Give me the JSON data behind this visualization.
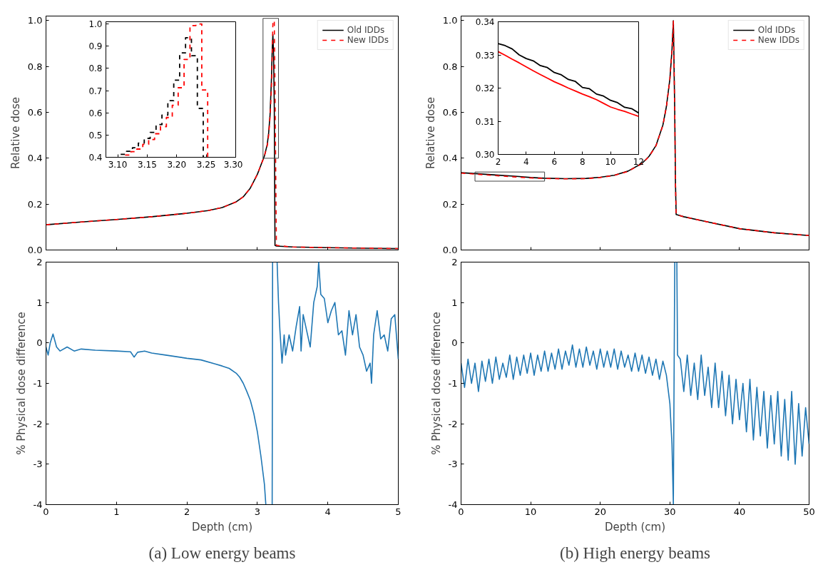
{
  "chart_data": [
    {
      "type": "line",
      "ylabel": "Relative dose",
      "xlim": [
        0,
        5
      ],
      "ylim": [
        0,
        1.02
      ],
      "xticks": [
        0,
        1,
        2,
        3,
        4,
        5
      ],
      "yticks": [
        {
          "value": 0,
          "label": "0.0"
        },
        0.2,
        0.4,
        0.6,
        0.8,
        {
          "value": 1,
          "label": "1.0"
        }
      ],
      "tick_labels": "y",
      "legend": "top right",
      "x": [
        0,
        0.5,
        1,
        1.5,
        2,
        2.3,
        2.5,
        2.7,
        2.8,
        2.9,
        3.0,
        3.05,
        3.1,
        3.14,
        3.16,
        3.18,
        3.2,
        3.21,
        3.22,
        3.23,
        3.24,
        3.25,
        3.27,
        3.5,
        4,
        4.5,
        5
      ],
      "series": [
        {
          "name": "Old IDDs",
          "color": "#000000",
          "line_style": "solid",
          "values": [
            0.11,
            0.122,
            0.133,
            0.145,
            0.16,
            0.172,
            0.185,
            0.21,
            0.232,
            0.27,
            0.33,
            0.37,
            0.41,
            0.46,
            0.51,
            0.59,
            0.75,
            0.87,
            0.94,
            0.85,
            0.62,
            0.02,
            0.017,
            0.013,
            0.01,
            0.008,
            0.006
          ]
        },
        {
          "name": "New IDDs",
          "color": "#ff0000",
          "line_style": "dashed",
          "values": [
            0.11,
            0.122,
            0.133,
            0.145,
            0.16,
            0.172,
            0.185,
            0.21,
            0.232,
            0.27,
            0.33,
            0.37,
            0.41,
            0.455,
            0.5,
            0.58,
            0.71,
            0.84,
            0.99,
            1.0,
            1.0,
            0.7,
            0.02,
            0.013,
            0.01,
            0.008,
            0.006
          ]
        }
      ]
    },
    {
      "type": "step",
      "xlim": [
        3.08,
        3.3
      ],
      "ylim": [
        0.4,
        1.01
      ],
      "xticks": [
        {
          "value": 3.1,
          "label": "3.10"
        },
        {
          "value": 3.15,
          "label": "3.15"
        },
        {
          "value": 3.2,
          "label": "3.20"
        },
        {
          "value": 3.25,
          "label": "3.25"
        },
        {
          "value": 3.3,
          "label": "3.30"
        }
      ],
      "yticks": [
        0.4,
        0.5,
        0.6,
        0.7,
        0.8,
        0.9,
        {
          "value": 1,
          "label": "1.0"
        }
      ],
      "series": [
        {
          "color": "#000000",
          "line_style": "dashed",
          "x": [
            3.105,
            3.115,
            3.125,
            3.135,
            3.145,
            3.155,
            3.165,
            3.175,
            3.185,
            3.195,
            3.205,
            3.215,
            3.225,
            3.235,
            3.245
          ],
          "values": [
            0.413,
            0.427,
            0.443,
            0.464,
            0.485,
            0.512,
            0.547,
            0.59,
            0.655,
            0.747,
            0.87,
            0.938,
            0.857,
            0.62,
            0.4
          ]
        },
        {
          "color": "#ff0000",
          "line_style": "dashed",
          "x": [
            3.1125,
            3.1225,
            3.1325,
            3.1425,
            3.1525,
            3.1625,
            3.1725,
            3.1825,
            3.1925,
            3.2025,
            3.2125,
            3.2225,
            3.2325,
            3.2425,
            3.2525
          ],
          "values": [
            0.41,
            0.425,
            0.437,
            0.458,
            0.48,
            0.506,
            0.538,
            0.579,
            0.634,
            0.713,
            0.84,
            0.993,
            1.0,
            0.703,
            0.4
          ]
        }
      ]
    },
    {
      "type": "line",
      "xlabel": "Depth (cm)",
      "ylabel": "% Physical dose difference",
      "xlim": [
        0,
        5
      ],
      "ylim": [
        -4,
        2
      ],
      "xticks": [
        0,
        1,
        2,
        3,
        4,
        5
      ],
      "yticks": [
        -4,
        -3,
        -2,
        -1,
        0,
        1,
        2
      ],
      "annotations": [
        "(a) Low energy beams"
      ],
      "x": [
        0,
        0.03,
        0.06,
        0.1,
        0.15,
        0.2,
        0.3,
        0.4,
        0.5,
        0.7,
        1.0,
        1.2,
        1.25,
        1.3,
        1.4,
        1.5,
        1.7,
        2.0,
        2.2,
        2.4,
        2.5,
        2.6,
        2.7,
        2.75,
        2.8,
        2.85,
        2.9,
        2.95,
        3.0,
        3.05,
        3.1,
        3.12,
        3.17,
        3.21,
        3.216,
        3.25,
        3.28,
        3.3,
        3.32,
        3.35,
        3.38,
        3.4,
        3.45,
        3.5,
        3.55,
        3.6,
        3.62,
        3.65,
        3.7,
        3.75,
        3.8,
        3.85,
        3.87,
        3.9,
        3.95,
        4.0,
        4.05,
        4.1,
        4.15,
        4.2,
        4.25,
        4.3,
        4.35,
        4.4,
        4.45,
        4.5,
        4.55,
        4.6,
        4.62,
        4.65,
        4.7,
        4.75,
        4.8,
        4.85,
        4.9,
        4.95,
        5.0
      ],
      "series": [
        {
          "color": "#1f77b4",
          "values": [
            -0.1,
            -0.3,
            0.0,
            0.22,
            -0.1,
            -0.2,
            -0.1,
            -0.2,
            -0.15,
            -0.18,
            -0.2,
            -0.22,
            -0.35,
            -0.23,
            -0.2,
            -0.25,
            -0.3,
            -0.38,
            -0.42,
            -0.52,
            -0.57,
            -0.63,
            -0.75,
            -0.85,
            -1.0,
            -1.2,
            -1.42,
            -1.75,
            -2.2,
            -2.8,
            -3.5,
            -4.0,
            null,
            -4.0,
            2.0,
            null,
            2.0,
            1.0,
            0.3,
            -0.5,
            0.2,
            -0.3,
            0.2,
            -0.2,
            0.4,
            0.9,
            -0.2,
            0.7,
            0.3,
            -0.1,
            1.0,
            1.4,
            2.0,
            1.2,
            1.1,
            0.5,
            0.8,
            1.0,
            0.2,
            0.3,
            -0.3,
            0.8,
            0.2,
            0.7,
            -0.1,
            -0.3,
            -0.7,
            -0.5,
            -1.0,
            0.2,
            0.8,
            0.1,
            0.2,
            -0.2,
            0.6,
            0.7,
            -0.4
          ]
        }
      ]
    },
    {
      "type": "line",
      "ylabel": "Relative dose",
      "xlim": [
        0,
        50
      ],
      "ylim": [
        0,
        1.02
      ],
      "xticks": [
        0,
        10,
        20,
        30,
        40,
        50
      ],
      "yticks": [
        {
          "value": 0,
          "label": "0.0"
        },
        0.2,
        0.4,
        0.6,
        0.8,
        {
          "value": 1,
          "label": "1.0"
        }
      ],
      "tick_labels": "y",
      "legend": "top right",
      "x": [
        0,
        2,
        5,
        8,
        10,
        12,
        15,
        18,
        20,
        22,
        24,
        26,
        27,
        28,
        29,
        29.5,
        30,
        30.3,
        30.5,
        30.7,
        30.8,
        30.9,
        32,
        35,
        40,
        45,
        50
      ],
      "series": [
        {
          "name": "Old IDDs",
          "color": "#000000",
          "line_style": "solid",
          "values": [
            0.337,
            0.333,
            0.327,
            0.321,
            0.316,
            0.313,
            0.311,
            0.312,
            0.317,
            0.326,
            0.344,
            0.378,
            0.408,
            0.455,
            0.545,
            0.625,
            0.745,
            0.87,
            1.0,
            0.6,
            0.3,
            0.155,
            0.145,
            0.125,
            0.093,
            0.075,
            0.063
          ]
        },
        {
          "name": "New IDDs",
          "color": "#ff0000",
          "line_style": "dashed",
          "values": [
            0.335,
            0.331,
            0.324,
            0.318,
            0.314,
            0.312,
            0.31,
            0.311,
            0.316,
            0.325,
            0.343,
            0.377,
            0.407,
            0.454,
            0.544,
            0.624,
            0.744,
            0.87,
            1.0,
            0.6,
            0.3,
            0.155,
            0.145,
            0.125,
            0.093,
            0.075,
            0.063
          ]
        }
      ]
    },
    {
      "type": "line",
      "xlim": [
        2,
        12
      ],
      "ylim": [
        0.3,
        0.34
      ],
      "xticks": [
        2,
        4,
        6,
        8,
        10,
        12
      ],
      "yticks": [
        {
          "value": 0.3,
          "label": "0.30"
        },
        0.31,
        0.32,
        0.33,
        0.34
      ],
      "x": [
        2,
        2.5,
        3,
        3.5,
        4,
        4.5,
        5,
        5.5,
        6,
        6.5,
        7,
        7.5,
        8,
        8.5,
        9,
        9.5,
        10,
        10.5,
        11,
        11.5,
        12
      ],
      "series": [
        {
          "color": "#000000",
          "line_style": "solid",
          "values": [
            0.3334,
            0.3328,
            0.3318,
            0.33,
            0.3289,
            0.3282,
            0.3268,
            0.3262,
            0.3247,
            0.324,
            0.3226,
            0.322,
            0.3202,
            0.3198,
            0.3182,
            0.3176,
            0.3163,
            0.3156,
            0.3142,
            0.3138,
            0.3125
          ]
        },
        {
          "color": "#ff0000",
          "line_style": "solid",
          "values": [
            0.331,
            0.3299,
            0.3287,
            0.3276,
            0.3264,
            0.3252,
            0.3241,
            0.323,
            0.3219,
            0.321,
            0.32,
            0.3191,
            0.3182,
            0.3174,
            0.3165,
            0.3154,
            0.3143,
            0.3136,
            0.313,
            0.3122,
            0.3115
          ]
        }
      ]
    },
    {
      "type": "line",
      "xlabel": "Depth (cm)",
      "ylabel": "% Physical dose difference",
      "xlim": [
        0,
        50
      ],
      "ylim": [
        -4,
        2
      ],
      "xticks": [
        0,
        10,
        20,
        30,
        40,
        50
      ],
      "yticks": [
        -4,
        -3,
        -2,
        -1,
        0,
        1,
        2
      ],
      "annotations": [
        "(b) High energy beams"
      ],
      "x": [
        0,
        0.5,
        1,
        1.5,
        2,
        2.5,
        3,
        3.5,
        4,
        4.5,
        5,
        5.5,
        6,
        6.5,
        7,
        7.5,
        8,
        8.5,
        9,
        9.5,
        10,
        10.5,
        11,
        11.5,
        12,
        12.5,
        13,
        13.5,
        14,
        14.5,
        15,
        15.5,
        16,
        16.5,
        17,
        17.5,
        18,
        18.5,
        19,
        19.5,
        20,
        20.5,
        21,
        21.5,
        22,
        22.5,
        23,
        23.5,
        24,
        24.5,
        25,
        25.5,
        26,
        26.5,
        27,
        27.5,
        28,
        28.5,
        29,
        29.5,
        30,
        30.3,
        30.5,
        30.7,
        30.85,
        31.0,
        31.1,
        31.5,
        32,
        32.5,
        33,
        33.5,
        34,
        34.5,
        35,
        35.5,
        36,
        36.5,
        37,
        37.5,
        38,
        38.5,
        39,
        39.5,
        40,
        40.5,
        41,
        41.5,
        42,
        42.5,
        43,
        43.5,
        44,
        44.5,
        45,
        45.5,
        46,
        46.5,
        47,
        47.5,
        48,
        48.5,
        49,
        49.5,
        50
      ],
      "series": [
        {
          "color": "#1f77b4",
          "values": [
            -0.5,
            -1.1,
            -0.4,
            -1.0,
            -0.5,
            -1.2,
            -0.45,
            -0.95,
            -0.4,
            -1.0,
            -0.35,
            -0.9,
            -0.5,
            -0.85,
            -0.3,
            -0.9,
            -0.35,
            -0.8,
            -0.3,
            -0.75,
            -0.25,
            -0.8,
            -0.3,
            -0.7,
            -0.2,
            -0.7,
            -0.25,
            -0.65,
            -0.15,
            -0.65,
            -0.2,
            -0.55,
            -0.05,
            -0.6,
            -0.15,
            -0.6,
            -0.1,
            -0.55,
            -0.2,
            -0.65,
            -0.15,
            -0.6,
            -0.2,
            -0.6,
            -0.15,
            -0.65,
            -0.2,
            -0.6,
            -0.3,
            -0.7,
            -0.25,
            -0.7,
            -0.3,
            -0.75,
            -0.35,
            -0.8,
            -0.4,
            -0.9,
            -0.45,
            -0.8,
            -1.5,
            -2.5,
            -4.0,
            2.0,
            null,
            2.0,
            -0.3,
            -0.4,
            -1.2,
            -0.3,
            -1.3,
            -0.5,
            -1.4,
            -0.3,
            -1.3,
            -0.6,
            -1.6,
            -0.5,
            -1.6,
            -0.7,
            -1.8,
            -0.8,
            -2.0,
            -0.9,
            -1.9,
            -1.0,
            -2.2,
            -0.9,
            -2.4,
            -1.1,
            -2.3,
            -1.2,
            -2.6,
            -1.3,
            -2.5,
            -1.2,
            -2.8,
            -1.4,
            -2.9,
            -1.2,
            -3.0,
            -1.5,
            -2.8,
            -1.6,
            -2.5
          ]
        }
      ]
    }
  ]
}
